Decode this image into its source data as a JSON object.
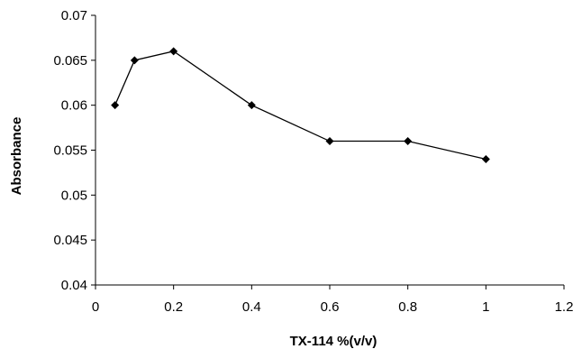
{
  "chart_data": {
    "type": "line",
    "title": "",
    "xlabel": "TX-114 %(v/v)",
    "ylabel": "Absorbance",
    "xlim": [
      0,
      1.2
    ],
    "ylim": [
      0.04,
      0.07
    ],
    "x_ticks": [
      0,
      0.2,
      0.4,
      0.6,
      0.8,
      1,
      1.2
    ],
    "x_tick_labels": [
      "0",
      "0.2",
      "0.4",
      "0.6",
      "0.8",
      "1",
      "1.2"
    ],
    "y_ticks": [
      0.04,
      0.045,
      0.05,
      0.055,
      0.06,
      0.065,
      0.07
    ],
    "y_tick_labels": [
      "0.04",
      "0.045",
      "0.05",
      "0.055",
      "0.06",
      "0.065",
      "0.07"
    ],
    "grid": false,
    "legend": "none",
    "marker": "diamond",
    "line_color": "#000000",
    "marker_color": "#000000",
    "series": [
      {
        "x": [
          0.05,
          0.1,
          0.2,
          0.4,
          0.6,
          0.8,
          1.0
        ],
        "y": [
          0.06,
          0.065,
          0.066,
          0.06,
          0.056,
          0.056,
          0.054
        ]
      }
    ]
  }
}
